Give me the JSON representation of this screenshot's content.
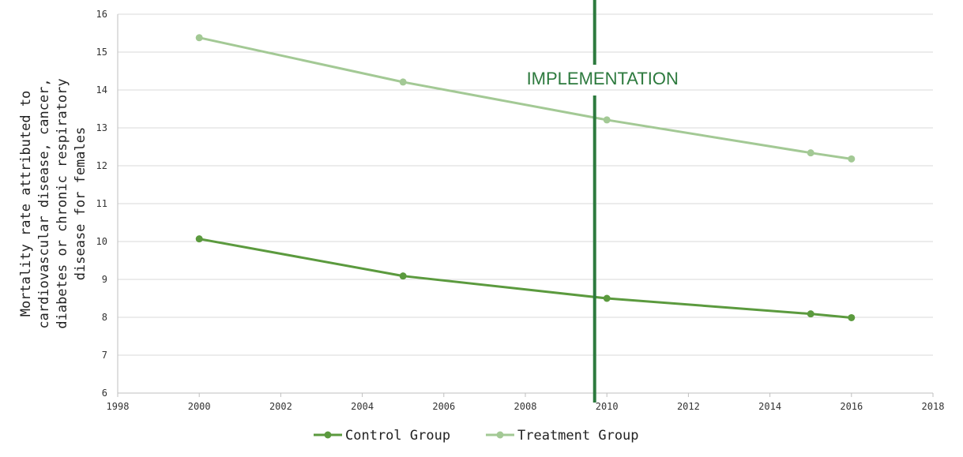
{
  "chart_data": {
    "type": "line",
    "title": "",
    "xlabel": "",
    "ylabel_lines": [
      "Mortality rate attributed to",
      "cardiovascular disease, cancer,",
      "diabetes or chronic respiratory",
      "disease for females"
    ],
    "xlim": [
      1998,
      2018
    ],
    "ylim": [
      6,
      16
    ],
    "x_ticks": [
      "1998",
      "2000",
      "2002",
      "2004",
      "2006",
      "2008",
      "2010",
      "2012",
      "2014",
      "2016",
      "2018"
    ],
    "y_ticks": [
      "6",
      "7",
      "8",
      "9",
      "10",
      "11",
      "12",
      "13",
      "14",
      "15",
      "16"
    ],
    "grid": "horizontal",
    "legend_position": "bottom-center",
    "series": [
      {
        "name": "Control Group",
        "color": "#5b9a3e",
        "x": [
          2000,
          2005,
          2010,
          2015,
          2016
        ],
        "y": [
          10.07,
          9.09,
          8.5,
          8.09,
          7.99
        ]
      },
      {
        "name": "Treatment Group",
        "color": "#a3c995",
        "x": [
          2000,
          2005,
          2010,
          2015,
          2016
        ],
        "y": [
          15.38,
          14.21,
          13.21,
          12.34,
          12.18
        ]
      }
    ],
    "annotation": {
      "text": "IMPLEMENTATION",
      "x": 2009.7,
      "color": "#2d7a3e"
    }
  }
}
